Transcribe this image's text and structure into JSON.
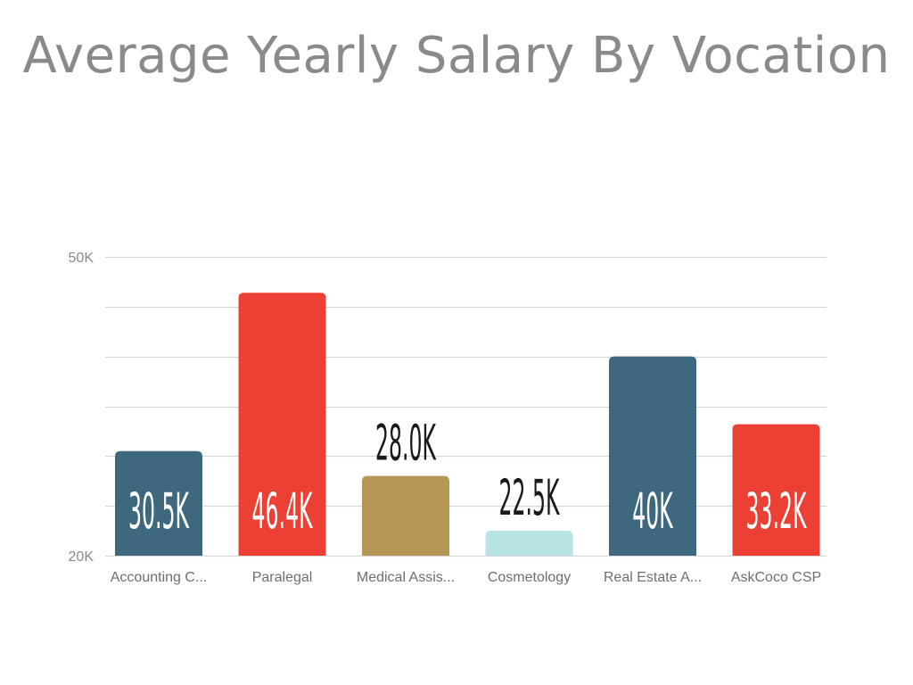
{
  "title": "Average Yearly Salary By Vocation",
  "chart_data": {
    "type": "bar",
    "title": "Average Yearly Salary By Vocation",
    "categories": [
      "Accounting C...",
      "Paralegal",
      "Medical Assis...",
      "Cosmetology",
      "Real Estate A...",
      "AskCoco CSP"
    ],
    "values": [
      30.5,
      46.4,
      28.0,
      22.5,
      40,
      33.2
    ],
    "data_labels": [
      "30.5K",
      "46.4K",
      "28.0K",
      "22.5K",
      "40K",
      "33.2K"
    ],
    "colors": [
      "#3d687e",
      "#ec4035",
      "#b59656",
      "#b6e3e3",
      "#3d687e",
      "#ec4035"
    ],
    "label_colors": [
      "#ffffff",
      "#ffffff",
      "#1a1a1a",
      "#1a1a1a",
      "#ffffff",
      "#ffffff"
    ],
    "label_inside": [
      true,
      true,
      false,
      false,
      true,
      true
    ],
    "ylim": [
      20,
      50
    ],
    "yticks": [
      {
        "value": 20,
        "label": "20K"
      },
      {
        "value": 50,
        "label": "50K"
      }
    ],
    "gridlines": [
      20,
      25,
      30,
      35,
      40,
      45,
      50
    ],
    "grid": true,
    "xlabel": "",
    "ylabel": ""
  }
}
